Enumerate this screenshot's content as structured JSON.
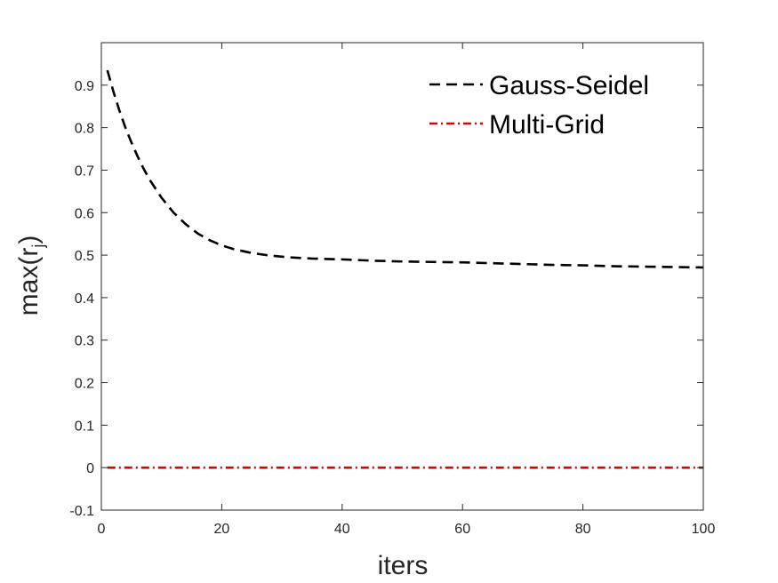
{
  "chart_data": {
    "type": "line",
    "xlabel": "iters",
    "ylabel": "max(r",
    "ylabel_subscript": "j",
    "ylabel_close": ")",
    "xlim": [
      0,
      100
    ],
    "ylim": [
      -0.1,
      1.0
    ],
    "xticks": [
      0,
      20,
      40,
      60,
      80,
      100
    ],
    "yticks": [
      -0.1,
      0,
      0.1,
      0.2,
      0.3,
      0.4,
      0.5,
      0.6,
      0.7,
      0.8,
      0.9
    ],
    "xtick_labels": [
      "0",
      "20",
      "40",
      "60",
      "80",
      "100"
    ],
    "ytick_labels": [
      "-0.1",
      "0",
      "0.1",
      "0.2",
      "0.3",
      "0.4",
      "0.5",
      "0.6",
      "0.7",
      "0.8",
      "0.9"
    ],
    "grid": false,
    "legend_position": "top-right",
    "series": [
      {
        "name": "Gauss-Seidel",
        "color": "#000000",
        "style": "dashed",
        "x": [
          1,
          2,
          3,
          4,
          5,
          6,
          7,
          8,
          10,
          12,
          14,
          16,
          18,
          20,
          22,
          25,
          28,
          31,
          35,
          40,
          45,
          50,
          55,
          60,
          65,
          70,
          75,
          80,
          85,
          90,
          95,
          100
        ],
        "y": [
          0.935,
          0.885,
          0.84,
          0.8,
          0.765,
          0.733,
          0.704,
          0.678,
          0.635,
          0.6,
          0.573,
          0.551,
          0.535,
          0.523,
          0.514,
          0.505,
          0.499,
          0.495,
          0.492,
          0.49,
          0.487,
          0.485,
          0.484,
          0.483,
          0.481,
          0.479,
          0.477,
          0.476,
          0.474,
          0.473,
          0.472,
          0.471
        ]
      },
      {
        "name": "Multi-Grid",
        "color": "#e00000",
        "style": "dashdot",
        "x": [
          1,
          10,
          20,
          30,
          40,
          50,
          60,
          70,
          80,
          90,
          100
        ],
        "y": [
          0,
          0,
          0,
          0,
          0,
          0,
          0,
          0,
          0,
          0,
          0
        ]
      }
    ]
  }
}
